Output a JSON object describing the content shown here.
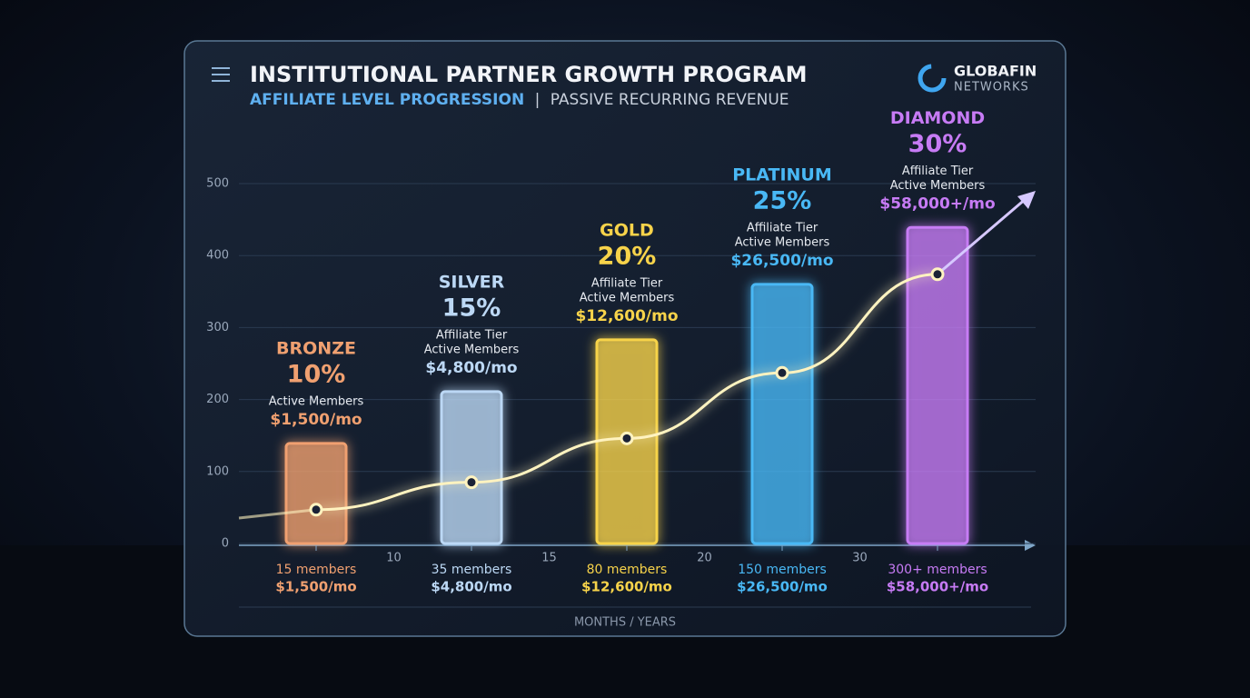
{
  "chart_data": {
    "type": "bar",
    "title": "INSTITUTIONAL PARTNER GROWTH PROGRAM",
    "subtitle": "AFFILIATE LEVEL PROGRESSION",
    "subtitle_separator": "|",
    "subtitle_tail": "PASSIVE RECURRING REVENUE",
    "brand": {
      "name": "GLOBAFIN",
      "sub": "NETWORKS"
    },
    "categories": [
      "BRONZE",
      "SILVER",
      "GOLD",
      "PLATINUM",
      "DIAMOND"
    ],
    "values": [
      139,
      211,
      283,
      360,
      439
    ],
    "tiers": [
      {
        "rate": "10%",
        "lines": [
          "Active Members"
        ],
        "revenue": "$1,500/mo",
        "members": "15 members",
        "color": "#f0a070"
      },
      {
        "rate": "15%",
        "lines": [
          "Affiliate Tier",
          "Active Members"
        ],
        "revenue": "$4,800/mo",
        "members": "35 members",
        "color": "#bcd8f5"
      },
      {
        "rate": "20%",
        "lines": [
          "Affiliate Tier",
          "Active Members"
        ],
        "revenue": "$12,600/mo",
        "members": "80 members",
        "color": "#f7d34a"
      },
      {
        "rate": "25%",
        "lines": [
          "Affiliate Tier",
          "Active Members"
        ],
        "revenue": "$26,500/mo",
        "members": "150 members",
        "color": "#49b8f5"
      },
      {
        "rate": "30%",
        "lines": [
          "Affiliate Tier",
          "Active Members"
        ],
        "revenue": "$58,000+/mo",
        "members": "300+ members",
        "color": "#c77bf5"
      }
    ],
    "trend": {
      "values": [
        47,
        85,
        146,
        237,
        374
      ],
      "color": "#fff3c0"
    },
    "x_marks": [
      10,
      15,
      20,
      30
    ],
    "xlabel": "MONTHS / YEARS",
    "ylim": [
      0,
      500
    ],
    "yticks": [
      0,
      100,
      200,
      300,
      400,
      500
    ],
    "grid": true
  }
}
